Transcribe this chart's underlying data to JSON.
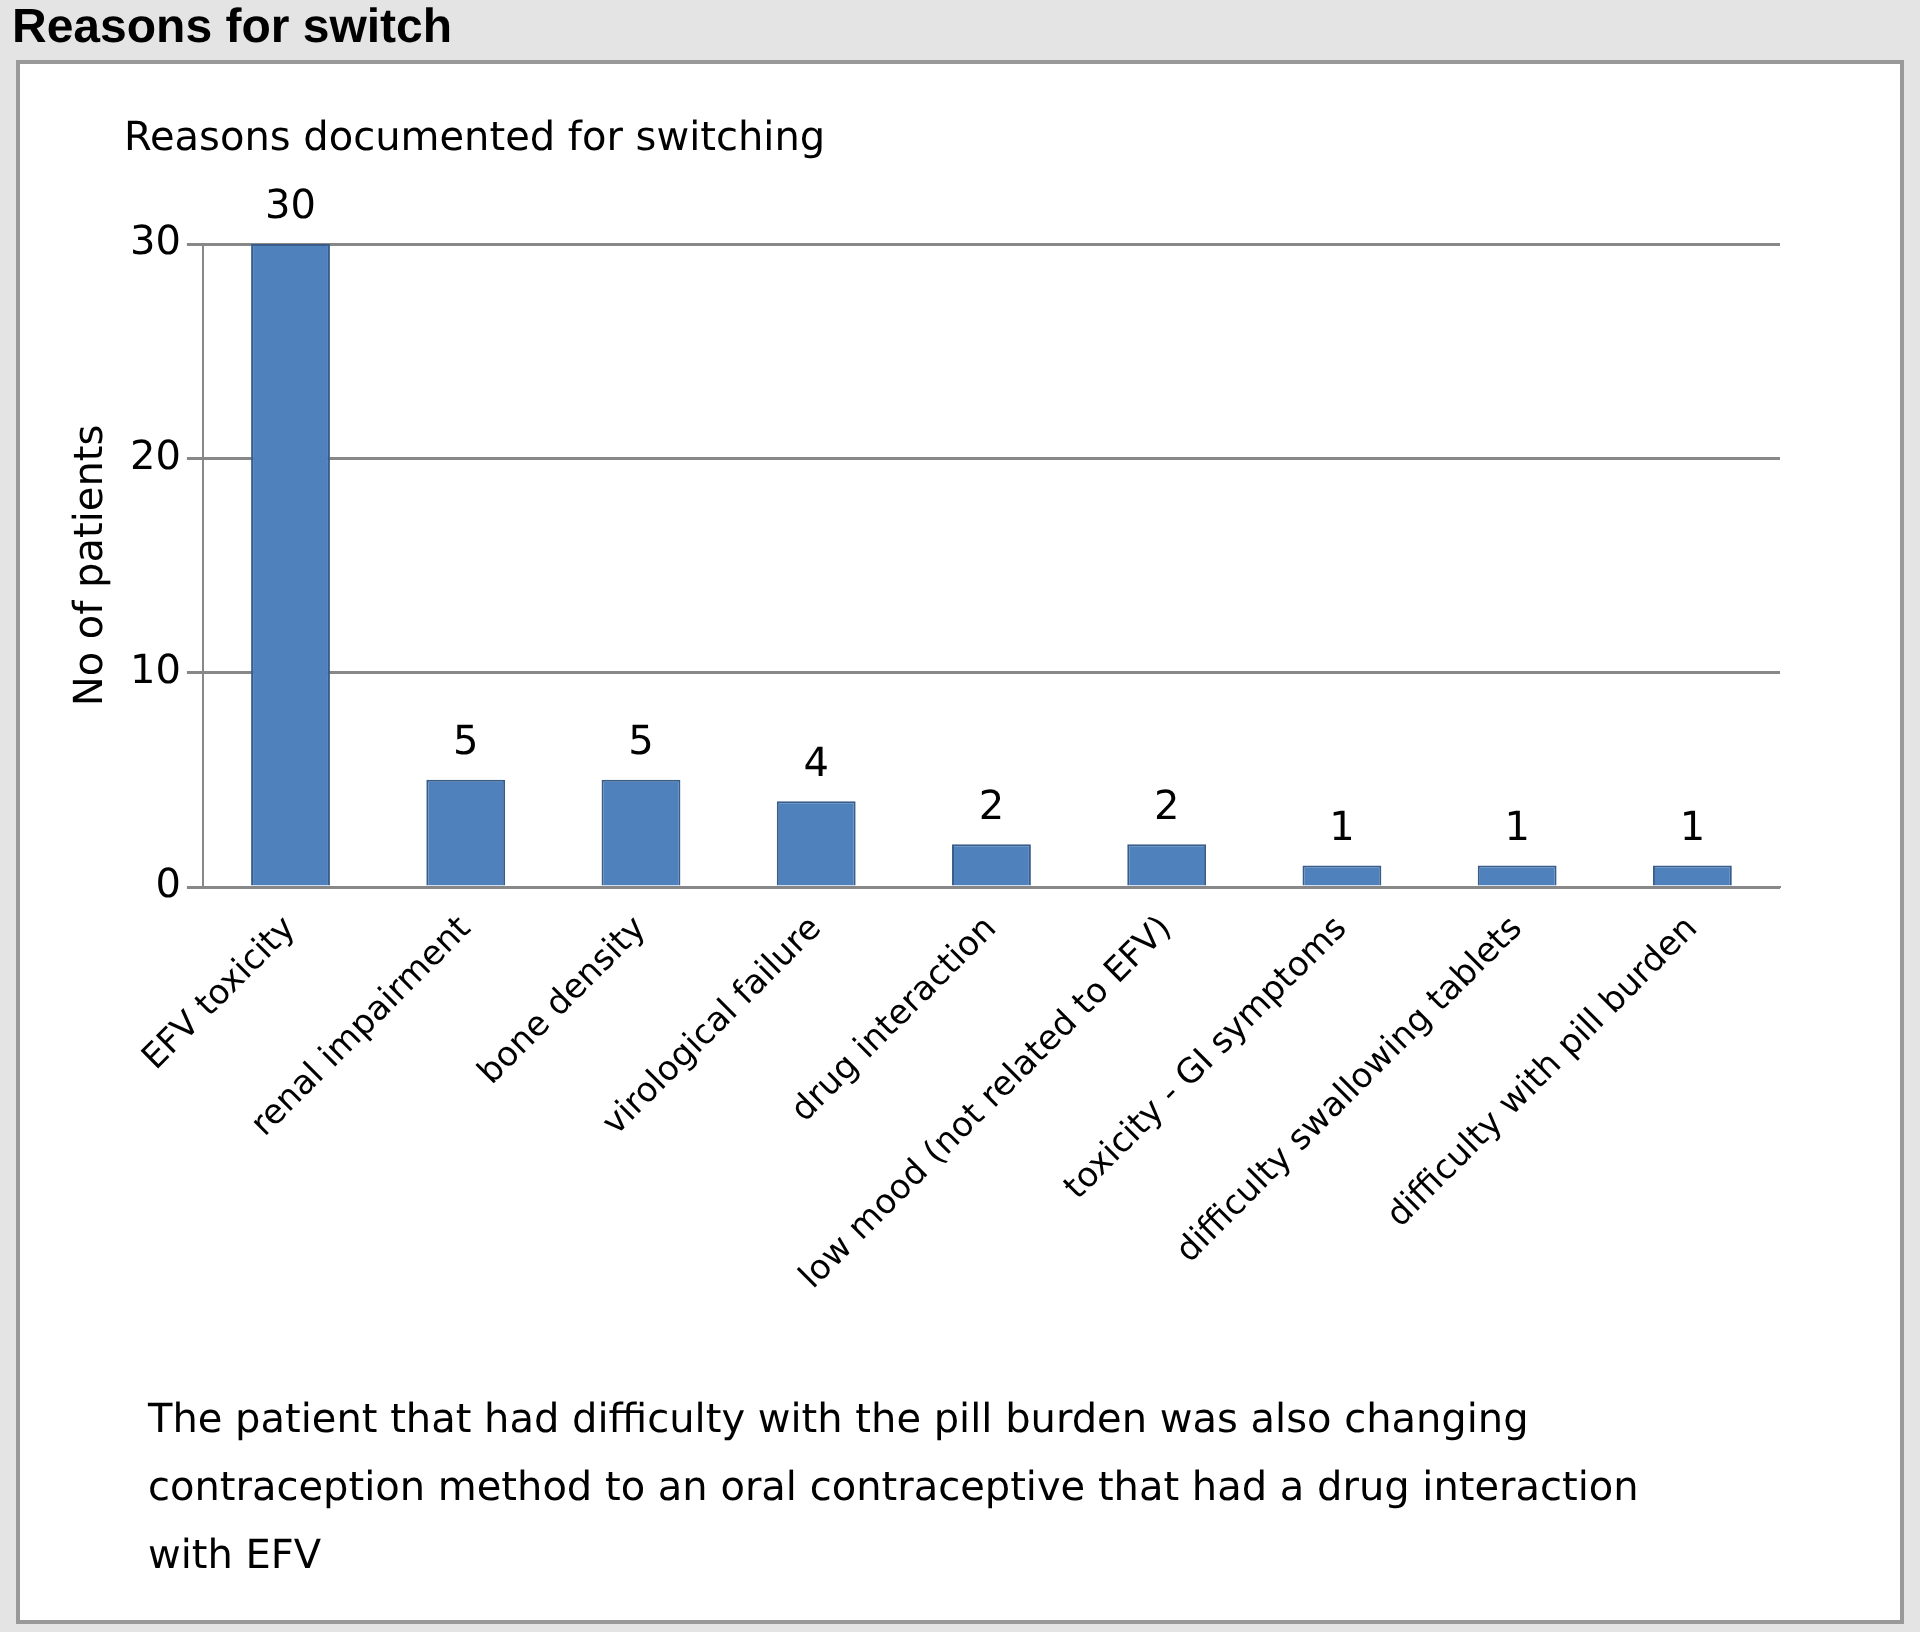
{
  "chart_data": {
    "type": "bar",
    "title": "Reasons for switch",
    "subtitle": "Reasons documented  for switching",
    "ylabel": "No of patients",
    "categories": [
      "EFV toxicity",
      "renal impairment",
      "bone density",
      "virological failure",
      "drug interaction",
      "low mood (not related to EFV)",
      "toxicity - GI symptoms",
      "difficulty swallowing tablets",
      "difficulty with pill burden"
    ],
    "values": [
      30,
      5,
      5,
      4,
      2,
      2,
      1,
      1,
      1
    ],
    "color": "#4f81bd",
    "ylim": [
      0,
      30
    ],
    "yticks": [
      0,
      10,
      20,
      30
    ],
    "grid": "y",
    "data_labels": true,
    "annotations": [
      "The patient that had difficulty with the pill burden was also changing contraception method to an oral contraceptive that had a drug interaction with EFV"
    ]
  }
}
